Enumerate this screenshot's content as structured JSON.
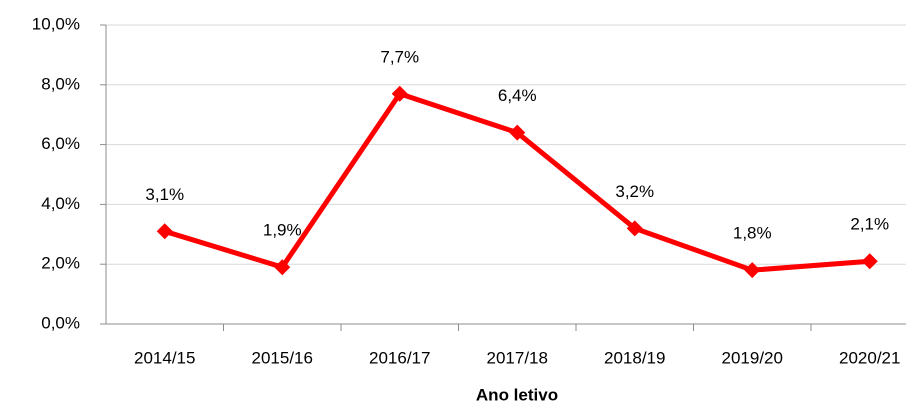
{
  "chart_data": {
    "type": "line",
    "x_label": "Ano letivo",
    "categories": [
      "2014/15",
      "2015/16",
      "2016/17",
      "2017/18",
      "2018/19",
      "2019/20",
      "2020/21"
    ],
    "series": [
      {
        "color": "#ff0000",
        "values": [
          3.1,
          1.9,
          7.7,
          6.4,
          3.2,
          1.8,
          2.1
        ],
        "value_labels": [
          "3,1%",
          "1,9%",
          "7,7%",
          "6,4%",
          "3,2%",
          "1,8%",
          "2,1%"
        ]
      }
    ],
    "ylim": [
      0,
      10
    ],
    "yticks": [
      {
        "value": 0,
        "label": "0,0%"
      },
      {
        "value": 2,
        "label": "2,0%"
      },
      {
        "value": 4,
        "label": "4,0%"
      },
      {
        "value": 6,
        "label": "6,0%"
      },
      {
        "value": 8,
        "label": "8,0%"
      },
      {
        "value": 10,
        "label": "10,0%"
      }
    ],
    "grid": true
  }
}
